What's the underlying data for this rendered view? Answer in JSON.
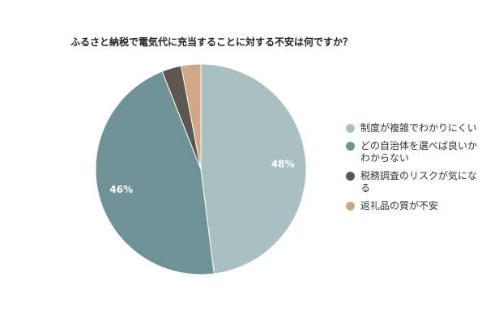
{
  "chart_data": {
    "type": "pie",
    "title": "ふるさと納税で電気代に充当することに対する不安は何ですか？",
    "categories": [
      "制度が複雑でわかりにくい",
      "どの自治体を選べば良いかわからない",
      "税務調査のリスクが気になる",
      "返礼品の質が不安"
    ],
    "values": [
      48,
      46,
      3,
      3
    ],
    "value_labels": [
      "48%",
      "46%",
      "",
      ""
    ],
    "colors": [
      "#a8c0c1",
      "#6e9296",
      "#5f5650",
      "#d1a785"
    ],
    "legend_position": "right"
  }
}
